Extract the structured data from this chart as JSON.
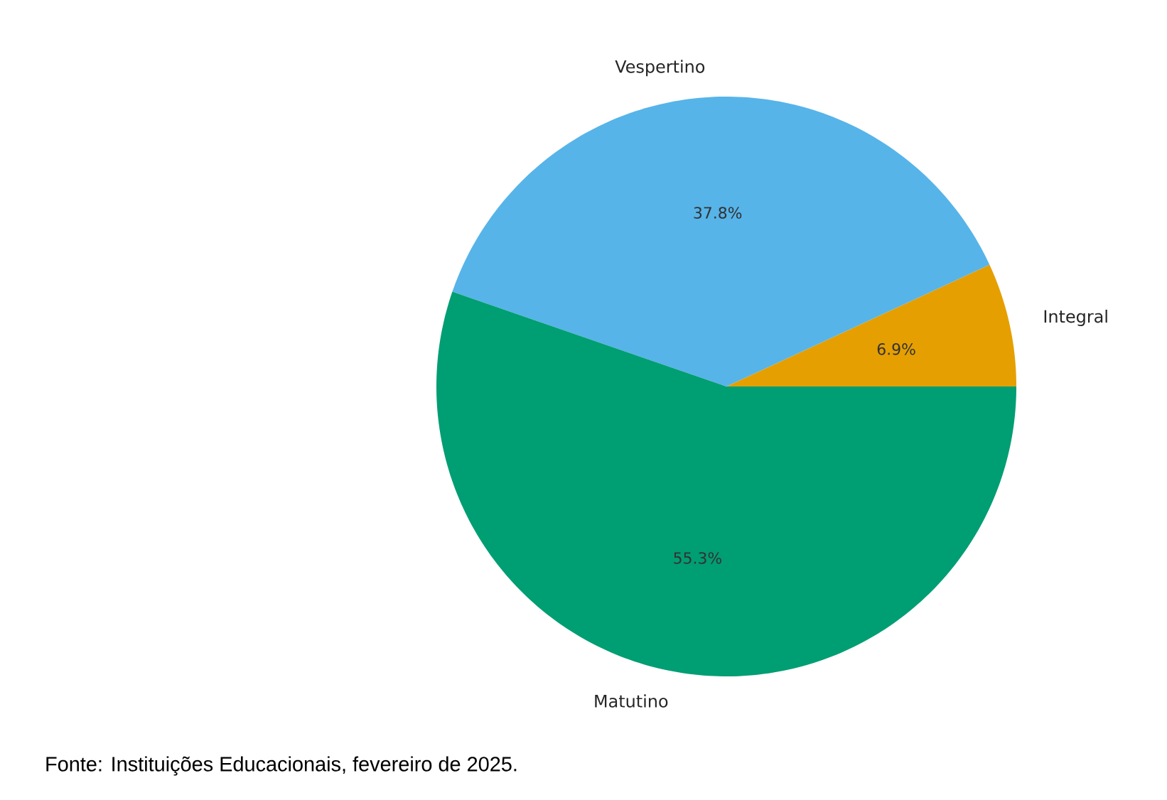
{
  "chart_data": {
    "type": "pie",
    "categories": [
      "Integral",
      "Vespertino",
      "Matutino"
    ],
    "values": [
      6.9,
      37.8,
      55.3
    ],
    "colors": [
      "#e69f00",
      "#56b4e9",
      "#009e73"
    ],
    "value_labels": [
      "6.9%",
      "37.8%",
      "55.3%"
    ],
    "annotations": [
      "Fonte: Instituições Educacionais, fevereiro de 2025."
    ]
  }
}
